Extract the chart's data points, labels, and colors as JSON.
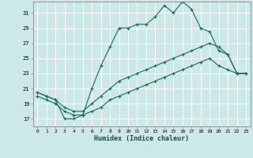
{
  "xlabel": "Humidex (Indice chaleur)",
  "bg_color": "#cce8e8",
  "grid_color": "#b0d0d0",
  "line_color": "#1a6b5a",
  "xlim": [
    -0.5,
    23.5
  ],
  "ylim": [
    16.0,
    32.5
  ],
  "yticks": [
    17,
    19,
    21,
    23,
    25,
    27,
    29,
    31
  ],
  "xticks": [
    0,
    1,
    2,
    3,
    4,
    5,
    6,
    7,
    8,
    9,
    10,
    11,
    12,
    13,
    14,
    15,
    16,
    17,
    18,
    19,
    20,
    21,
    22,
    23
  ],
  "xtick_labels": [
    "0",
    "1",
    "2",
    "3",
    "4",
    "5",
    "6",
    "7",
    "8",
    "9",
    "10",
    "11",
    "12",
    "13",
    "14",
    "15",
    "16",
    "17",
    "18",
    "19",
    "20",
    "21",
    "22",
    "23"
  ],
  "line1_x": [
    0,
    1,
    2,
    3,
    4,
    5,
    6,
    7,
    8,
    9,
    10,
    11,
    12,
    13,
    14,
    15,
    16,
    17,
    18,
    19,
    20,
    21,
    22,
    23
  ],
  "line1_y": [
    20.5,
    20.0,
    19.5,
    17.0,
    17.0,
    17.5,
    21.0,
    24.0,
    26.5,
    29.0,
    29.0,
    29.5,
    29.5,
    30.5,
    32.0,
    31.0,
    32.5,
    31.5,
    29.0,
    28.5,
    26.0,
    25.5,
    23.0,
    23.0
  ],
  "line2_x": [
    0,
    1,
    2,
    3,
    4,
    5,
    6,
    7,
    8,
    9,
    10,
    11,
    12,
    13,
    14,
    15,
    16,
    17,
    18,
    19,
    20,
    21,
    22,
    23
  ],
  "line2_y": [
    20.5,
    20.0,
    19.5,
    18.5,
    18.0,
    18.0,
    19.0,
    20.0,
    21.0,
    22.0,
    22.5,
    23.0,
    23.5,
    24.0,
    24.5,
    25.0,
    25.5,
    26.0,
    26.5,
    27.0,
    26.5,
    25.5,
    23.0,
    23.0
  ],
  "line3_x": [
    0,
    1,
    2,
    3,
    4,
    5,
    6,
    7,
    8,
    9,
    10,
    11,
    12,
    13,
    14,
    15,
    16,
    17,
    18,
    19,
    20,
    21,
    22,
    23
  ],
  "line3_y": [
    20.0,
    19.5,
    19.0,
    18.0,
    17.5,
    17.5,
    18.0,
    18.5,
    19.5,
    20.0,
    20.5,
    21.0,
    21.5,
    22.0,
    22.5,
    23.0,
    23.5,
    24.0,
    24.5,
    25.0,
    24.0,
    23.5,
    23.0,
    23.0
  ]
}
